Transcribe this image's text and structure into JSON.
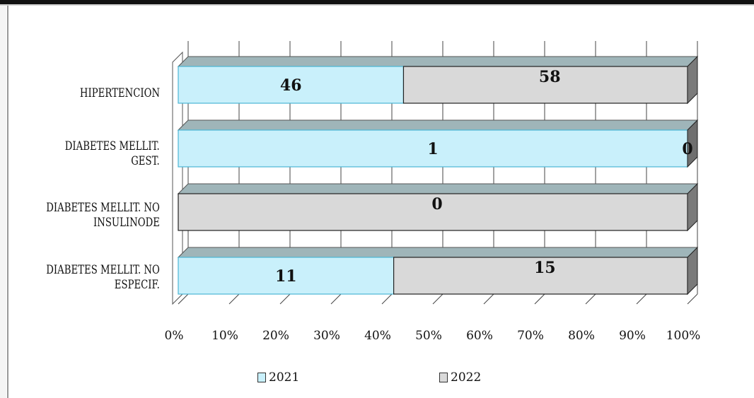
{
  "chart_data": {
    "type": "bar",
    "orientation": "horizontal",
    "stacked": "percent",
    "categories": [
      "HIPERTENCION",
      "DIABETES MELLIT. GEST.",
      "DIABETES MELLIT. NO INSULINODE",
      "DIABETES MELLIT. NO ESPECIF."
    ],
    "category_lines": [
      [
        "HIPERTENCION"
      ],
      [
        "DIABETES MELLIT.",
        "GEST."
      ],
      [
        "DIABETES MELLIT. NO",
        "INSULINODE"
      ],
      [
        "DIABETES MELLIT. NO",
        "ESPECIF."
      ]
    ],
    "series": [
      {
        "name": "2021",
        "values": [
          46,
          1,
          null,
          11
        ],
        "labels": [
          "46",
          "1",
          "",
          "11"
        ],
        "color": "#c9f0fb"
      },
      {
        "name": "2022",
        "values": [
          58,
          0,
          0,
          15
        ],
        "labels": [
          "58",
          "0",
          "0",
          "15"
        ],
        "color": "#d9d9d9"
      }
    ],
    "xlim": [
      0,
      100
    ],
    "x_tick_labels": [
      "0%",
      "10%",
      "20%",
      "30%",
      "40%",
      "50%",
      "60%",
      "70%",
      "80%",
      "90%",
      "100%"
    ],
    "grid": true,
    "legend_position": "bottom",
    "style": "3d"
  }
}
